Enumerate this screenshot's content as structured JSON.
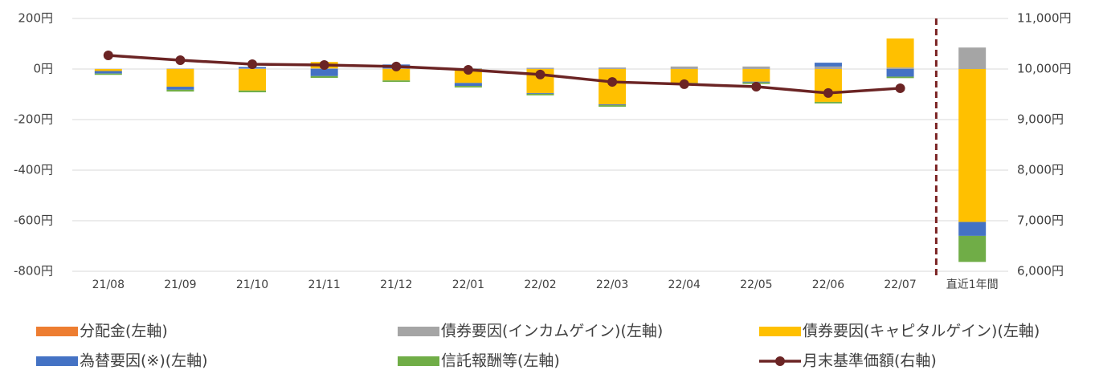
{
  "chart_data": {
    "type": "bar",
    "categories": [
      "21/08",
      "21/09",
      "21/10",
      "21/11",
      "21/12",
      "22/01",
      "22/02",
      "22/03",
      "22/04",
      "22/05",
      "22/06",
      "22/07",
      "直近1年間"
    ],
    "series": [
      {
        "name": "分配金(左軸)",
        "color": "#ed7d31",
        "values": [
          0,
          0,
          0,
          0,
          0,
          0,
          0,
          0,
          0,
          0,
          0,
          0,
          0
        ]
      },
      {
        "name": "債券要因(インカムゲイン)(左軸)",
        "color": "#a5a5a5",
        "values": [
          1,
          2,
          3,
          3,
          3,
          3,
          5,
          6,
          10,
          10,
          10,
          6,
          85
        ]
      },
      {
        "name": "債券要因(キャピタルゲイン)(左軸)",
        "color": "#ffc000",
        "values": [
          -8,
          -70,
          -85,
          25,
          -45,
          -55,
          -95,
          -140,
          -55,
          -50,
          -130,
          115,
          -605
        ]
      },
      {
        "name": "為替要因(※)(左軸)",
        "color": "#4472c4",
        "values": [
          -10,
          -12,
          5,
          -28,
          15,
          -12,
          -3,
          -3,
          0,
          -3,
          15,
          -30,
          -55
        ]
      },
      {
        "name": "信託報酬等(左軸)",
        "color": "#70ad47",
        "values": [
          -5,
          -7,
          -7,
          -7,
          -6,
          -6,
          -6,
          -6,
          -5,
          -6,
          -6,
          -6,
          -103
        ]
      },
      {
        "name": "月末基準価額(右軸)",
        "color": "#6b2424",
        "type": "line",
        "axis": "y2",
        "values": [
          10270,
          10175,
          10095,
          10080,
          10050,
          9985,
          9890,
          9745,
          9700,
          9650,
          9525,
          9620,
          null
        ]
      }
    ],
    "ylim": [
      -800,
      200
    ],
    "yticks": [
      {
        "value": -800,
        "label": "-800円"
      },
      {
        "value": -600,
        "label": "-600円"
      },
      {
        "value": -400,
        "label": "-400円"
      },
      {
        "value": -200,
        "label": "-200円"
      },
      {
        "value": 0,
        "label": "0円"
      },
      {
        "value": 200,
        "label": "200円"
      }
    ],
    "y2lim": [
      6000,
      11000
    ],
    "y2ticks": [
      {
        "value": 6000,
        "label": "6,000円"
      },
      {
        "value": 7000,
        "label": "7,000円"
      },
      {
        "value": 8000,
        "label": "8,000円"
      },
      {
        "value": 9000,
        "label": "9,000円"
      },
      {
        "value": 10000,
        "label": "10,000円"
      },
      {
        "value": 11000,
        "label": "11,000円"
      }
    ],
    "grid": true
  }
}
